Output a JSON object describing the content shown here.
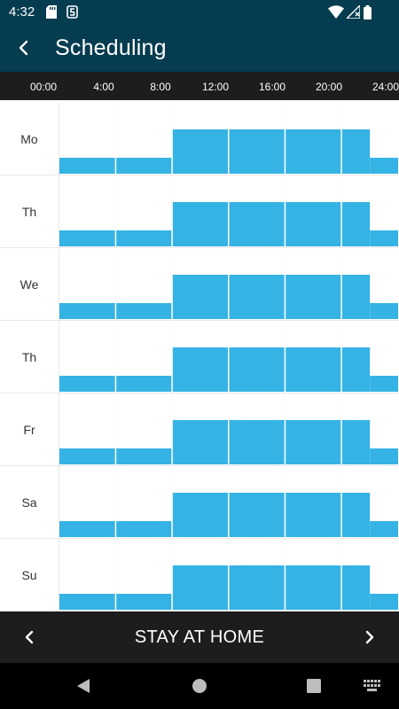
{
  "status_bar": {
    "time": "4:32",
    "icons": [
      "sd-card-icon",
      "sync-icon",
      "wifi-icon",
      "signal-icon",
      "battery-icon"
    ]
  },
  "header": {
    "title": "Scheduling",
    "back_icon": "arrow-back-icon"
  },
  "time_axis": {
    "labels": [
      "00:00",
      "4:00",
      "8:00",
      "12:00",
      "16:00",
      "20:00",
      "24:00"
    ]
  },
  "colors": {
    "header_bg": "#053c4f",
    "bar_color": "#35b3e5",
    "dark_bar_bg": "#1d1d1d",
    "grid_line": "#e8e8e8"
  },
  "schedule": {
    "level_scale": "low = first band, high = second band",
    "days": [
      {
        "label": "Mo",
        "blocks": [
          {
            "start": "00:00",
            "end": "08:00",
            "level": "low"
          },
          {
            "start": "08:00",
            "end": "22:00",
            "level": "high"
          },
          {
            "start": "22:00",
            "end": "24:00",
            "level": "low"
          }
        ]
      },
      {
        "label": "Th",
        "blocks": [
          {
            "start": "00:00",
            "end": "08:00",
            "level": "low"
          },
          {
            "start": "08:00",
            "end": "22:00",
            "level": "high"
          },
          {
            "start": "22:00",
            "end": "24:00",
            "level": "low"
          }
        ]
      },
      {
        "label": "We",
        "blocks": [
          {
            "start": "00:00",
            "end": "08:00",
            "level": "low"
          },
          {
            "start": "08:00",
            "end": "22:00",
            "level": "high"
          },
          {
            "start": "22:00",
            "end": "24:00",
            "level": "low"
          }
        ]
      },
      {
        "label": "Th",
        "blocks": [
          {
            "start": "00:00",
            "end": "08:00",
            "level": "low"
          },
          {
            "start": "08:00",
            "end": "22:00",
            "level": "high"
          },
          {
            "start": "22:00",
            "end": "24:00",
            "level": "low"
          }
        ]
      },
      {
        "label": "Fr",
        "blocks": [
          {
            "start": "00:00",
            "end": "08:00",
            "level": "low"
          },
          {
            "start": "08:00",
            "end": "22:00",
            "level": "high"
          },
          {
            "start": "22:00",
            "end": "24:00",
            "level": "low"
          }
        ]
      },
      {
        "label": "Sa",
        "blocks": [
          {
            "start": "00:00",
            "end": "08:00",
            "level": "low"
          },
          {
            "start": "08:00",
            "end": "22:00",
            "level": "high"
          },
          {
            "start": "22:00",
            "end": "24:00",
            "level": "low"
          }
        ]
      },
      {
        "label": "Su",
        "blocks": [
          {
            "start": "00:00",
            "end": "08:00",
            "level": "low"
          },
          {
            "start": "08:00",
            "end": "22:00",
            "level": "high"
          },
          {
            "start": "22:00",
            "end": "24:00",
            "level": "low"
          }
        ]
      }
    ]
  },
  "mode_bar": {
    "label": "STAY AT HOME",
    "prev_icon": "chevron-left-icon",
    "next_icon": "chevron-right-icon"
  },
  "system_nav": {
    "icons": [
      "back-triangle-icon",
      "home-circle-icon",
      "recents-square-icon",
      "keyboard-icon"
    ]
  }
}
